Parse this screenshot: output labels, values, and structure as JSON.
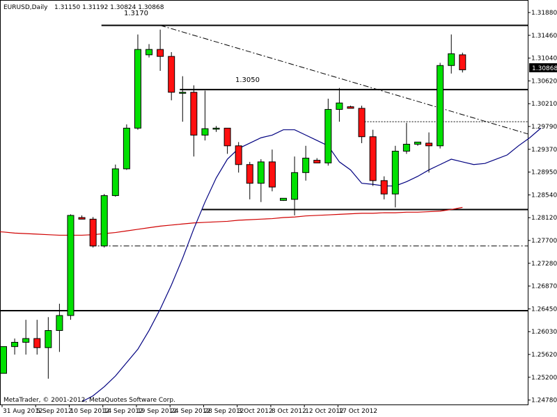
{
  "chart_header": {
    "symbol": "EURUSD,Daily",
    "ohlc": "1.31150 1.31192 1.30824 1.30868"
  },
  "copyright": "MetaTrader, © 2001-2012, MetaQuotes Software Corp.",
  "price_labels": [
    "1.3170",
    "1.3050"
  ],
  "current_price": "1.30868",
  "colors": {
    "background": "#ffffff",
    "bull_candle": "#00e000",
    "bear_candle": "#ff1010",
    "candle_outline": "#000000",
    "ma_fast": "#000080",
    "ma_slow": "#d00000",
    "axis": "#000000"
  },
  "chart_data": {
    "type": "candlestick",
    "title": "EURUSD,Daily",
    "ylim": [
      1.2467,
      1.3194
    ],
    "x_labels": [
      "31 Aug 2012",
      "5 Sep 2012",
      "10 Sep 2012",
      "14 Sep 2012",
      "19 Sep 2012",
      "24 Sep 2012",
      "28 Sep 2012",
      "3 Oct 2012",
      "8 Oct 2012",
      "12 Oct 2012",
      "17 Oct 2012"
    ],
    "x_label_index": [
      0,
      3,
      6,
      9,
      12,
      15,
      18,
      21,
      24,
      27,
      30
    ],
    "y_ticks": [
      "1.31880",
      "1.31460",
      "1.31040",
      "1.30620",
      "1.30210",
      "1.29790",
      "1.29370",
      "1.28950",
      "1.28540",
      "1.28120",
      "1.27700",
      "1.27280",
      "1.26870",
      "1.26450",
      "1.26030",
      "1.25620",
      "1.25200",
      "1.24780"
    ],
    "candles": [
      {
        "o": 1.252,
        "h": 1.257,
        "l": 1.252,
        "c": 1.257
      },
      {
        "o": 1.257,
        "h": 1.2585,
        "l": 1.2555,
        "c": 1.2578
      },
      {
        "o": 1.2578,
        "h": 1.262,
        "l": 1.2555,
        "c": 1.2585
      },
      {
        "o": 1.2585,
        "h": 1.262,
        "l": 1.2555,
        "c": 1.2568
      },
      {
        "o": 1.2568,
        "h": 1.2625,
        "l": 1.251,
        "c": 1.26
      },
      {
        "o": 1.26,
        "h": 1.265,
        "l": 1.256,
        "c": 1.2628
      },
      {
        "o": 1.2628,
        "h": 1.2817,
        "l": 1.262,
        "c": 1.2815
      },
      {
        "o": 1.2811,
        "h": 1.2815,
        "l": 1.2808,
        "c": 1.2808
      },
      {
        "o": 1.2808,
        "h": 1.2812,
        "l": 1.2755,
        "c": 1.2758
      },
      {
        "o": 1.2758,
        "h": 1.2855,
        "l": 1.2755,
        "c": 1.2852
      },
      {
        "o": 1.2852,
        "h": 1.291,
        "l": 1.285,
        "c": 1.2902
      },
      {
        "o": 1.2902,
        "h": 1.2985,
        "l": 1.29,
        "c": 1.2978
      },
      {
        "o": 1.2978,
        "h": 1.3153,
        "l": 1.2975,
        "c": 1.3125
      },
      {
        "o": 1.3115,
        "h": 1.3135,
        "l": 1.311,
        "c": 1.3125
      },
      {
        "o": 1.3125,
        "h": 1.3162,
        "l": 1.3085,
        "c": 1.3112
      },
      {
        "o": 1.3112,
        "h": 1.312,
        "l": 1.303,
        "c": 1.3045
      },
      {
        "o": 1.3045,
        "h": 1.3075,
        "l": 1.299,
        "c": 1.3045
      },
      {
        "o": 1.3045,
        "h": 1.3058,
        "l": 1.2925,
        "c": 1.2965
      },
      {
        "o": 1.2965,
        "h": 1.3048,
        "l": 1.2955,
        "c": 1.2977
      },
      {
        "o": 1.2978,
        "h": 1.2982,
        "l": 1.2971,
        "c": 1.2978
      },
      {
        "o": 1.2978,
        "h": 1.2978,
        "l": 1.293,
        "c": 1.2945
      },
      {
        "o": 1.2945,
        "h": 1.2952,
        "l": 1.2895,
        "c": 1.291
      },
      {
        "o": 1.291,
        "h": 1.2915,
        "l": 1.2845,
        "c": 1.2875
      },
      {
        "o": 1.2875,
        "h": 1.292,
        "l": 1.284,
        "c": 1.2915
      },
      {
        "o": 1.2915,
        "h": 1.2938,
        "l": 1.286,
        "c": 1.2868
      },
      {
        "o": 1.2843,
        "h": 1.2847,
        "l": 1.2842,
        "c": 1.2847
      },
      {
        "o": 1.2845,
        "h": 1.2925,
        "l": 1.2815,
        "c": 1.2895
      },
      {
        "o": 1.2895,
        "h": 1.2945,
        "l": 1.288,
        "c": 1.2922
      },
      {
        "o": 1.2918,
        "h": 1.2922,
        "l": 1.2913,
        "c": 1.2913
      },
      {
        "o": 1.2913,
        "h": 1.3033,
        "l": 1.2908,
        "c": 1.3013
      },
      {
        "o": 1.3013,
        "h": 1.3053,
        "l": 1.299,
        "c": 1.3025
      },
      {
        "o": 1.3018,
        "h": 1.302,
        "l": 1.3015,
        "c": 1.3015
      },
      {
        "o": 1.3015,
        "h": 1.302,
        "l": 1.295,
        "c": 1.2962
      },
      {
        "o": 1.2962,
        "h": 1.2975,
        "l": 1.287,
        "c": 1.288
      },
      {
        "o": 1.288,
        "h": 1.2888,
        "l": 1.2845,
        "c": 1.2855
      },
      {
        "o": 1.2855,
        "h": 1.2945,
        "l": 1.283,
        "c": 1.2935
      },
      {
        "o": 1.2935,
        "h": 1.2988,
        "l": 1.293,
        "c": 1.2948
      },
      {
        "o": 1.2948,
        "h": 1.2952,
        "l": 1.2945,
        "c": 1.2952
      },
      {
        "o": 1.295,
        "h": 1.297,
        "l": 1.2895,
        "c": 1.2945
      },
      {
        "o": 1.2945,
        "h": 1.31,
        "l": 1.294,
        "c": 1.3095
      },
      {
        "o": 1.3095,
        "h": 1.3153,
        "l": 1.308,
        "c": 1.3117
      },
      {
        "o": 1.3115,
        "h": 1.3119,
        "l": 1.3082,
        "c": 1.3087
      }
    ],
    "ma_fast": [
      1.2467,
      1.2478,
      1.2495,
      1.2515,
      1.254,
      1.2565,
      1.26,
      1.264,
      1.2685,
      1.2735,
      1.279,
      1.284,
      1.2885,
      1.292,
      1.294,
      1.295,
      1.296,
      1.2965,
      1.2975,
      1.2975,
      1.2965,
      1.2955,
      1.2945,
      1.2915,
      1.29,
      1.2875,
      1.2873,
      1.287,
      1.287,
      1.2878,
      1.2888,
      1.29,
      1.291,
      1.292,
      1.2915,
      1.291,
      1.2912,
      1.292,
      1.2928,
      1.2945,
      1.296,
      1.2978
    ],
    "ma_fast_start": 7,
    "ma_slow": [
      1.2785,
      1.2784,
      1.2782,
      1.2781,
      1.278,
      1.2779,
      1.2778,
      1.2778,
      1.2778,
      1.2779,
      1.2781,
      1.2783,
      1.2786,
      1.2789,
      1.2792,
      1.2795,
      1.2797,
      1.2799,
      1.2801,
      1.2802,
      1.2803,
      1.2804,
      1.2806,
      1.2807,
      1.2808,
      1.2809,
      1.2811,
      1.2812,
      1.2814,
      1.2815,
      1.2816,
      1.2817,
      1.2818,
      1.2819,
      1.2819,
      1.282,
      1.282,
      1.2821,
      1.2821,
      1.2822,
      1.2823,
      1.2826,
      1.283
    ],
    "ma_slow_start": -1,
    "levels": [
      {
        "price": 1.317,
        "from": 9,
        "to": 48,
        "style": "solid"
      },
      {
        "price": 1.305,
        "from": 16,
        "to": 48,
        "style": "solid"
      },
      {
        "price": 1.2826,
        "from": 18,
        "to": 48,
        "style": "solid"
      },
      {
        "price": 1.2637,
        "from": -1,
        "to": 48,
        "style": "solid"
      },
      {
        "price": 1.2758,
        "from": 8,
        "to": 48,
        "style": "dashdot"
      },
      {
        "price": 1.299,
        "from": 32,
        "to": 48,
        "style": "dotted"
      }
    ],
    "trendline": {
      "from_index": 14,
      "from_price": 1.317,
      "to_index": 48,
      "to_price": 1.296
    }
  }
}
